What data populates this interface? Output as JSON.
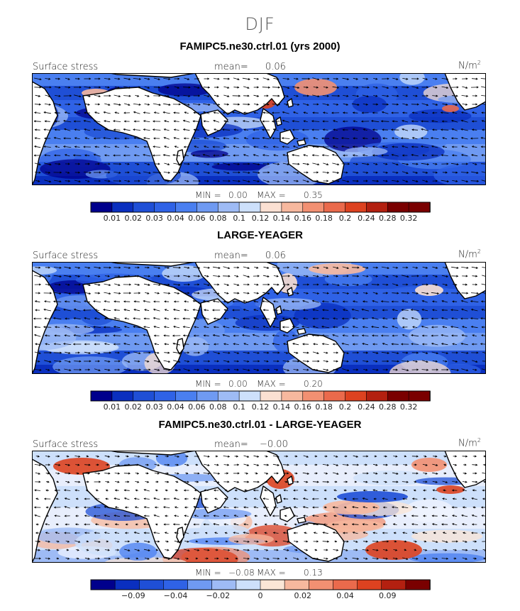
{
  "season": "DJF",
  "units_base": "N/m",
  "units_exp": "2",
  "chart_data": [
    {
      "type": "heatmap",
      "title": "FAMIPC5.ne30.ctrl.01 (yrs 2000)",
      "field_label": "Surface stress",
      "mean_label": "mean=",
      "mean_value": "0.06",
      "min_label": "MIN =",
      "min_value": "0.00",
      "max_label": "MAX =",
      "max_value": "0.35",
      "colorbar_ticks": [
        "0.01",
        "0.02",
        "0.03",
        "0.04",
        "0.06",
        "0.08",
        "0.1",
        "0.12",
        "0.14",
        "0.16",
        "0.18",
        "0.2",
        "0.24",
        "0.28",
        "0.32"
      ],
      "colorbar_colors": [
        "#00008c",
        "#0a2fbf",
        "#1f4fd6",
        "#2f62e6",
        "#4a7ff0",
        "#6f9af2",
        "#9ebbf5",
        "#cde0fb",
        "#fbe0d2",
        "#f7b89e",
        "#f29072",
        "#ea6a4c",
        "#dd4220",
        "#b32010",
        "#7a0000",
        "#7a0000"
      ]
    },
    {
      "type": "heatmap",
      "title": "LARGE-YEAGER",
      "field_label": "Surface stress",
      "mean_label": "mean=",
      "mean_value": "0.06",
      "min_label": "MIN =",
      "min_value": "0.00",
      "max_label": "MAX =",
      "max_value": "0.20",
      "colorbar_ticks": [
        "0.01",
        "0.02",
        "0.03",
        "0.04",
        "0.06",
        "0.08",
        "0.1",
        "0.12",
        "0.14",
        "0.16",
        "0.18",
        "0.2",
        "0.24",
        "0.28",
        "0.32"
      ],
      "colorbar_colors": [
        "#00008c",
        "#0a2fbf",
        "#1f4fd6",
        "#2f62e6",
        "#4a7ff0",
        "#6f9af2",
        "#9ebbf5",
        "#cde0fb",
        "#fbe0d2",
        "#f7b89e",
        "#f29072",
        "#ea6a4c",
        "#dd4220",
        "#b32010",
        "#7a0000",
        "#7a0000"
      ]
    },
    {
      "type": "heatmap",
      "title": "FAMIPC5.ne30.ctrl.01 - LARGE-YEAGER",
      "field_label": "Surface stress",
      "mean_label": "mean=",
      "mean_value": "−0.00",
      "min_label": "MIN =",
      "min_value": "−0.08",
      "max_label": "MAX =",
      "max_value": "0.13",
      "colorbar_ticks": [
        "−0.09",
        "−0.04",
        "−0.02",
        "0",
        "0.02",
        "0.04",
        "0.09"
      ],
      "colorbar_colors": [
        "#00008c",
        "#0a2fbf",
        "#1f4fd6",
        "#2f62e6",
        "#6f9af2",
        "#9ebbf5",
        "#cde0fb",
        "#fbe6d6",
        "#f7b89e",
        "#f29072",
        "#ea6a4c",
        "#dd4220",
        "#b32010",
        "#7a0000"
      ]
    }
  ]
}
